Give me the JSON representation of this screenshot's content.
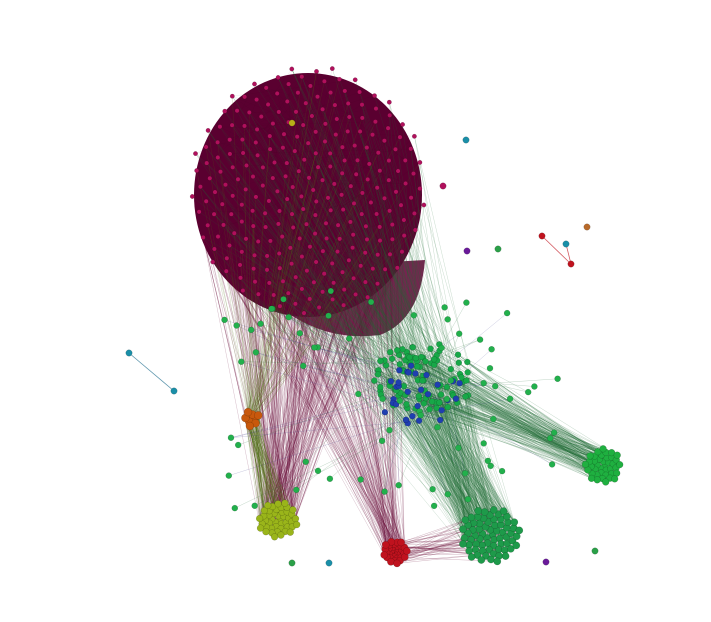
{
  "graph": {
    "type": "network",
    "background": "#ffffff",
    "clusters": [
      {
        "name": "magenta-community",
        "color": "#b0105c",
        "hub_color": "#5a0030",
        "node_count": 260
      },
      {
        "name": "green-community-center",
        "color": "#17a848",
        "node_count": 90
      },
      {
        "name": "green-community-right",
        "color": "#1fb040",
        "node_count": 40
      },
      {
        "name": "green-community-bottom",
        "color": "#1e9a4a",
        "node_count": 70
      },
      {
        "name": "olive-community",
        "color": "#9ab51a",
        "node_count": 45
      },
      {
        "name": "red-community",
        "color": "#c0121e",
        "node_count": 35
      },
      {
        "name": "orange-community",
        "color": "#c8580c",
        "node_count": 8
      },
      {
        "name": "blue-community",
        "color": "#1f3fb0",
        "node_count": 30
      }
    ],
    "edge_colors": [
      "#6a0f3a",
      "#1d6b34",
      "#4f6a14",
      "#3a3a8a"
    ],
    "isolated_colors": [
      "#1a8fa8",
      "#c0121e",
      "#b86a2a",
      "#6a1a9a",
      "#2aa048"
    ]
  }
}
